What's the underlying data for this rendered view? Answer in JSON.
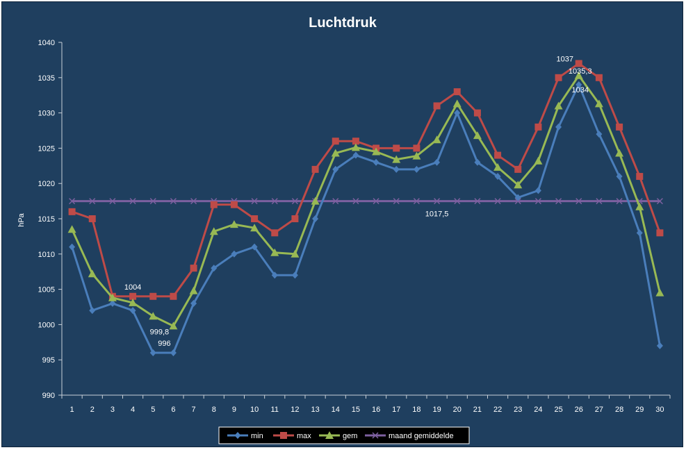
{
  "chart_data": {
    "type": "line",
    "title": "Luchtdruk",
    "xlabel": "",
    "ylabel": "hPa",
    "ylim": [
      990,
      1040
    ],
    "yticks": [
      990,
      995,
      1000,
      1005,
      1010,
      1015,
      1020,
      1025,
      1030,
      1035,
      1040
    ],
    "x": [
      1,
      2,
      3,
      4,
      5,
      6,
      7,
      8,
      9,
      10,
      11,
      12,
      13,
      14,
      15,
      16,
      17,
      18,
      19,
      20,
      21,
      22,
      23,
      24,
      25,
      26,
      27,
      28,
      29,
      30
    ],
    "grid": false,
    "legend": "bottom",
    "series": [
      {
        "name": "min",
        "color": "#4a7ebb",
        "marker": "diamond",
        "values": [
          1011,
          1002,
          1003,
          1002,
          996,
          996,
          1003,
          1008,
          1010,
          1011,
          1007,
          1007,
          1015,
          1022,
          1024,
          1023,
          1022,
          1022,
          1023,
          1030,
          1023,
          1021,
          1018,
          1019,
          1028,
          1034,
          1027,
          1021,
          1013,
          997
        ]
      },
      {
        "name": "max",
        "color": "#be4b48",
        "marker": "square",
        "values": [
          1016,
          1015,
          1004,
          1004,
          1004,
          1004,
          1008,
          1017,
          1017,
          1015,
          1013,
          1015,
          1022,
          1026,
          1026,
          1025,
          1025,
          1025,
          1031,
          1033,
          1030,
          1024,
          1022,
          1028,
          1035,
          1037,
          1035,
          1028,
          1021,
          1013
        ]
      },
      {
        "name": "gem",
        "color": "#98b954",
        "marker": "triangle",
        "values": [
          1013.5,
          1007.2,
          1003.8,
          1003.1,
          1001.2,
          999.8,
          1004.8,
          1013.2,
          1014.2,
          1013.7,
          1010.2,
          1010,
          1017.5,
          1024.3,
          1025.1,
          1024.5,
          1023.4,
          1023.9,
          1026.2,
          1031.3,
          1026.8,
          1022.3,
          1019.8,
          1023.2,
          1031,
          1035.3,
          1031.3,
          1024.3,
          1016.7,
          1004.5
        ]
      },
      {
        "name": "maand gemiddelde",
        "color": "#7d60a0",
        "marker": "x",
        "values": [
          1017.5,
          1017.5,
          1017.5,
          1017.5,
          1017.5,
          1017.5,
          1017.5,
          1017.5,
          1017.5,
          1017.5,
          1017.5,
          1017.5,
          1017.5,
          1017.5,
          1017.5,
          1017.5,
          1017.5,
          1017.5,
          1017.5,
          1017.5,
          1017.5,
          1017.5,
          1017.5,
          1017.5,
          1017.5,
          1017.5,
          1017.5,
          1017.5,
          1017.5,
          1017.5
        ]
      }
    ],
    "annotations": [
      {
        "text": "1004",
        "series": "max",
        "x": 4
      },
      {
        "text": "999,8",
        "series": "gem",
        "x": 6
      },
      {
        "text": "996",
        "series": "min",
        "x": 6
      },
      {
        "text": "1037",
        "series": "max",
        "x": 26
      },
      {
        "text": "1035,3",
        "series": "gem",
        "x": 26
      },
      {
        "text": "1034",
        "series": "min",
        "x": 26
      },
      {
        "text": "1017,5",
        "series": "maand gemiddelde",
        "x": 19
      }
    ]
  }
}
